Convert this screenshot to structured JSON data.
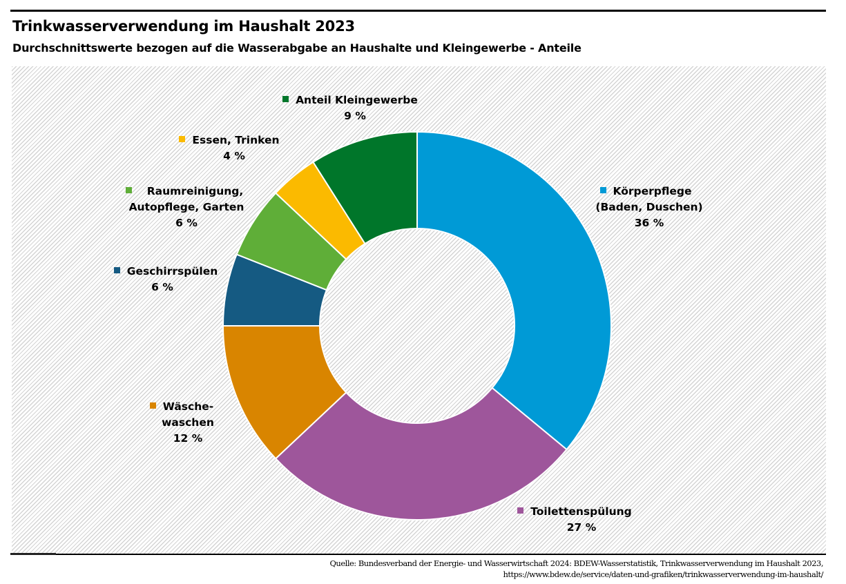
{
  "header": {
    "title": "Trinkwasserverwendung im Haushalt 2023",
    "subtitle": "Durchschnittswerte bezogen auf die Wasserabgabe an Haushalte und Kleingewerbe - Anteile"
  },
  "footer": {
    "source_line1": "Quelle: Bundesverband der Energie- und Wasserwirtschaft 2024: BDEW-Wasserstatistik, Trinkwasserverwendung im Haushalt 2023,",
    "source_line2": "https://www.bdew.de/service/daten-und-grafiken/trinkwasserverwendung-im-haushalt/"
  },
  "chart_data": {
    "type": "pie",
    "variant": "donut",
    "title": "Trinkwasserverwendung im Haushalt 2023",
    "subtitle": "Durchschnittswerte bezogen auf die Wasserabgabe an Haushalte und Kleingewerbe - Anteile",
    "unit": "%",
    "start": "12 o'clock, clockwise",
    "slices": [
      {
        "key": "koerperpflege",
        "label_lines": [
          "Körperpflege",
          "(Baden, Duschen)"
        ],
        "value": 36,
        "value_label": "36 %",
        "color": "#009ad6"
      },
      {
        "key": "toilettenspuelung",
        "label_lines": [
          "Toilettenspülung"
        ],
        "value": 27,
        "value_label": "27 %",
        "color": "#9e569b"
      },
      {
        "key": "waeschewaschen",
        "label_lines": [
          "Wäsche-",
          "waschen"
        ],
        "value": 12,
        "value_label": "12 %",
        "color": "#d98500"
      },
      {
        "key": "geschirrspuelen",
        "label_lines": [
          "Geschirrspülen"
        ],
        "value": 6,
        "value_label": "6 %",
        "color": "#155a82"
      },
      {
        "key": "raumreinigung",
        "label_lines": [
          "Raumreinigung,",
          "Autopflege, Garten"
        ],
        "value": 6,
        "value_label": "6 %",
        "color": "#5fae38"
      },
      {
        "key": "essen-trinken",
        "label_lines": [
          "Essen, Trinken"
        ],
        "value": 4,
        "value_label": "4 %",
        "color": "#fbba00"
      },
      {
        "key": "kleingewerbe",
        "label_lines": [
          "Anteil Kleingewerbe"
        ],
        "value": 9,
        "value_label": "9 %",
        "color": "#00762a"
      }
    ]
  }
}
